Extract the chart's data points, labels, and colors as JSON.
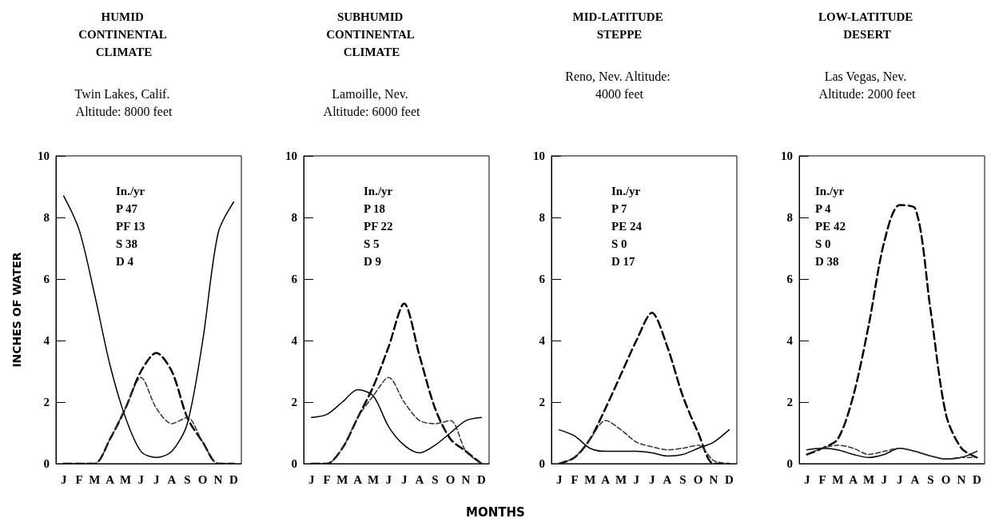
{
  "chart_data": [
    {
      "type": "line",
      "title": "HUMID CONTINENTAL CLIMATE",
      "subtitle": "Twin Lakes, Calif. Altitude: 8000 feet",
      "ylabel": "INCHES OF WATER",
      "categories": [
        "J",
        "F",
        "M",
        "A",
        "M",
        "J",
        "J",
        "A",
        "S",
        "O",
        "N",
        "D"
      ],
      "ylim": [
        0,
        10
      ],
      "yticks": [
        0,
        2,
        4,
        6,
        8,
        10
      ],
      "grid": false,
      "marker": "none",
      "annotations": [
        "In./yr",
        "P 47",
        "PF 13",
        "S 38",
        "D 4"
      ],
      "series": [
        {
          "color": "#000000",
          "line_style": "solid",
          "values": [
            8.7,
            7.6,
            5.5,
            3.2,
            1.5,
            0.4,
            0.2,
            0.4,
            1.3,
            4.0,
            7.5,
            8.5
          ]
        },
        {
          "color": "#000000",
          "line_style": "dashed",
          "values": [
            0,
            0,
            0,
            0.8,
            1.8,
            3.0,
            3.6,
            3.0,
            1.5,
            0.7,
            0,
            0
          ]
        },
        {
          "color": "#333333",
          "line_style": "dashed",
          "values": [
            0,
            0,
            0,
            0.8,
            1.8,
            2.8,
            1.8,
            1.3,
            1.5,
            0.7,
            0,
            0
          ]
        }
      ]
    },
    {
      "type": "line",
      "title": "SUBHUMID CONTINENTAL CLIMATE",
      "subtitle": "Lamoille, Nev. Altitude: 6000 feet",
      "xlabel": "MONTHS",
      "categories": [
        "J",
        "F",
        "M",
        "A",
        "M",
        "J",
        "J",
        "A",
        "S",
        "O",
        "N",
        "D"
      ],
      "ylim": [
        0,
        10
      ],
      "yticks": [
        0,
        2,
        4,
        6,
        8,
        10
      ],
      "grid": false,
      "marker": "none",
      "annotations": [
        "In./yr",
        "P 18",
        "PF 22",
        "S 5",
        "D 9"
      ],
      "series": [
        {
          "color": "#000000",
          "line_style": "solid",
          "values": [
            1.5,
            1.6,
            2.0,
            2.4,
            2.2,
            1.2,
            0.6,
            0.35,
            0.6,
            1.0,
            1.4,
            1.5
          ]
        },
        {
          "color": "#000000",
          "line_style": "dashed",
          "values": [
            0,
            0,
            0.5,
            1.5,
            2.5,
            3.8,
            5.2,
            3.5,
            1.8,
            0.8,
            0.4,
            0
          ]
        },
        {
          "color": "#333333",
          "line_style": "dashed",
          "values": [
            0,
            0,
            0.5,
            1.5,
            2.2,
            2.8,
            2.0,
            1.4,
            1.3,
            1.4,
            0.4,
            0
          ]
        }
      ]
    },
    {
      "type": "line",
      "title": "MID-LATITUDE STEPPE",
      "subtitle": "Reno, Nev. Altitude: 4000 feet",
      "categories": [
        "J",
        "F",
        "M",
        "A",
        "M",
        "J",
        "J",
        "A",
        "S",
        "O",
        "N",
        "D"
      ],
      "ylim": [
        0,
        10
      ],
      "yticks": [
        0,
        2,
        4,
        6,
        8,
        10
      ],
      "grid": false,
      "marker": "none",
      "annotations": [
        "In./yr",
        "P 7",
        "PE 24",
        "S 0",
        "D 17"
      ],
      "series": [
        {
          "color": "#000000",
          "line_style": "solid",
          "values": [
            1.1,
            0.9,
            0.5,
            0.4,
            0.4,
            0.4,
            0.35,
            0.25,
            0.3,
            0.5,
            0.7,
            1.1
          ]
        },
        {
          "color": "#000000",
          "line_style": "dashed",
          "values": [
            0,
            0.2,
            0.8,
            1.8,
            2.9,
            4.0,
            4.9,
            3.8,
            2.2,
            1.0,
            0,
            0
          ]
        },
        {
          "color": "#333333",
          "line_style": "dashed",
          "values": [
            0,
            0.2,
            0.8,
            1.4,
            1.1,
            0.7,
            0.55,
            0.45,
            0.5,
            0.6,
            0.1,
            0
          ]
        }
      ]
    },
    {
      "type": "line",
      "title": "LOW-LATITUDE DESERT",
      "subtitle": "Las Vegas, Nev. Altitude: 2000 feet",
      "categories": [
        "J",
        "F",
        "M",
        "A",
        "M",
        "J",
        "J",
        "A",
        "S",
        "O",
        "N",
        "D"
      ],
      "ylim": [
        0,
        10
      ],
      "yticks": [
        0,
        2,
        4,
        6,
        8,
        10
      ],
      "grid": false,
      "marker": "none",
      "annotations": [
        "In./yr",
        "P 4",
        "PE 42",
        "S 0",
        "D 38"
      ],
      "series": [
        {
          "color": "#000000",
          "line_style": "solid",
          "values": [
            0.45,
            0.5,
            0.45,
            0.3,
            0.2,
            0.3,
            0.5,
            0.4,
            0.25,
            0.15,
            0.2,
            0.4
          ]
        },
        {
          "color": "#000000",
          "line_style": "dashed",
          "values": [
            0.3,
            0.5,
            0.8,
            2.2,
            4.5,
            7.2,
            8.4,
            8.3,
            5.0,
            1.6,
            0.5,
            0.2
          ]
        },
        {
          "color": "#333333",
          "line_style": "dashed",
          "values": [
            0.3,
            0.5,
            0.6,
            0.5,
            0.3,
            0.4,
            0.5,
            0.4,
            0.25,
            0.15,
            0.2,
            0.2
          ]
        }
      ]
    }
  ]
}
